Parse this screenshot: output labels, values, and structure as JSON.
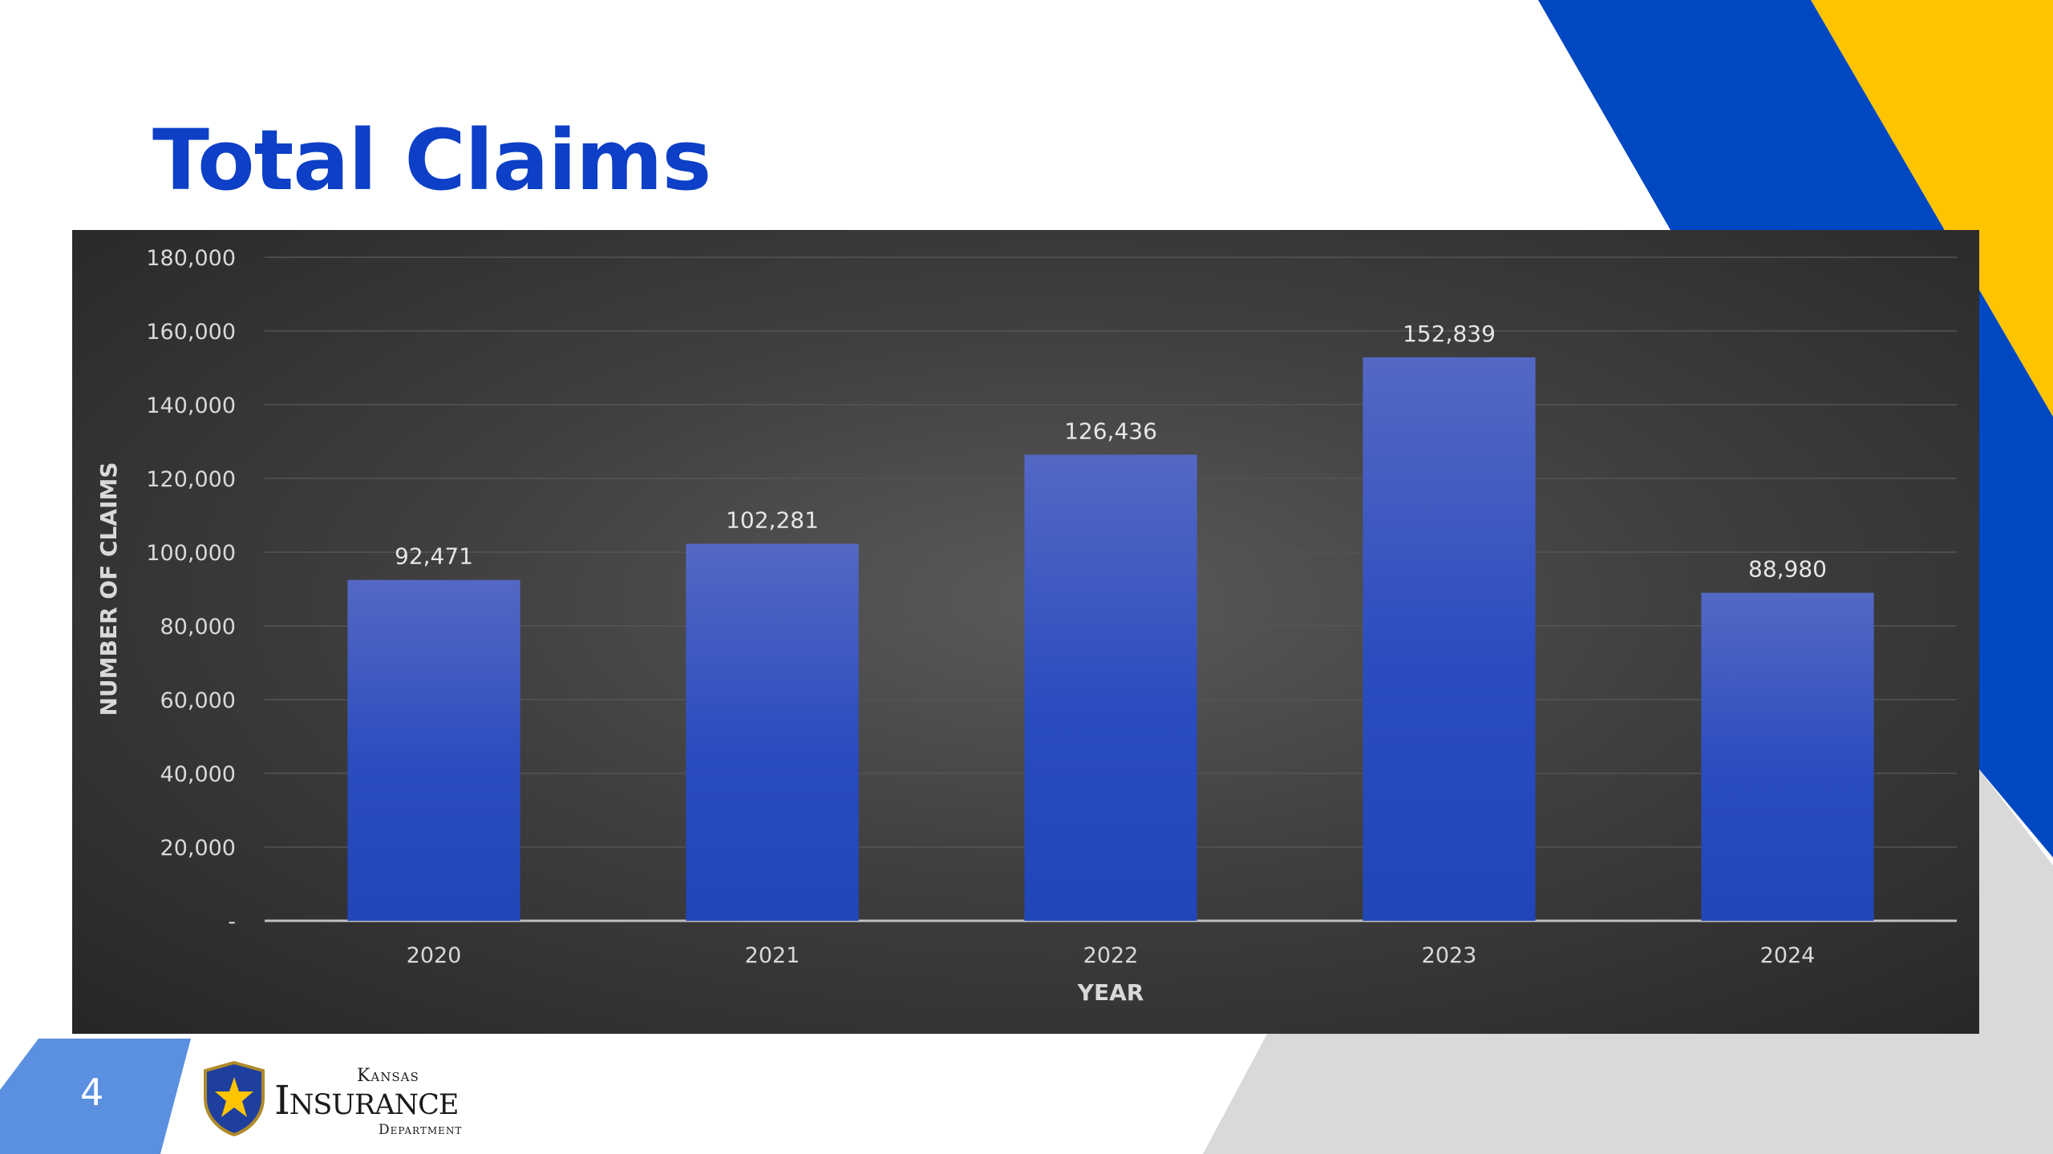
{
  "slide": {
    "title": "Total Claims",
    "page_number": "4"
  },
  "logo": {
    "line1": "Kansas",
    "line2": "Insurance",
    "line3": "Department"
  },
  "colors": {
    "title": "#0d3fc7",
    "accent_blue": "#0047c2",
    "accent_yellow": "#ffc400",
    "accent_gray": "#d9d9d9",
    "page_box": "#5b8fe0",
    "bar_top": "#5468c4",
    "bar_bottom": "#2146b8",
    "panel": "#3a3a3a"
  },
  "chart_data": {
    "type": "bar",
    "title": "",
    "categories": [
      "2020",
      "2021",
      "2022",
      "2023",
      "2024"
    ],
    "values": [
      92471,
      102281,
      126436,
      152839,
      88980
    ],
    "data_labels": [
      "92,471",
      "102,281",
      "126,436",
      "152,839",
      "88,980"
    ],
    "xlabel": "YEAR",
    "ylabel": "NUMBER OF CLAIMS",
    "ylim": [
      0,
      180000
    ],
    "y_ticks": [
      0,
      20000,
      40000,
      60000,
      80000,
      100000,
      120000,
      140000,
      160000,
      180000
    ],
    "y_tick_labels": [
      "-",
      "20,000",
      "40,000",
      "60,000",
      "80,000",
      "100,000",
      "120,000",
      "140,000",
      "160,000",
      "180,000"
    ],
    "grid": true,
    "legend": "none"
  }
}
